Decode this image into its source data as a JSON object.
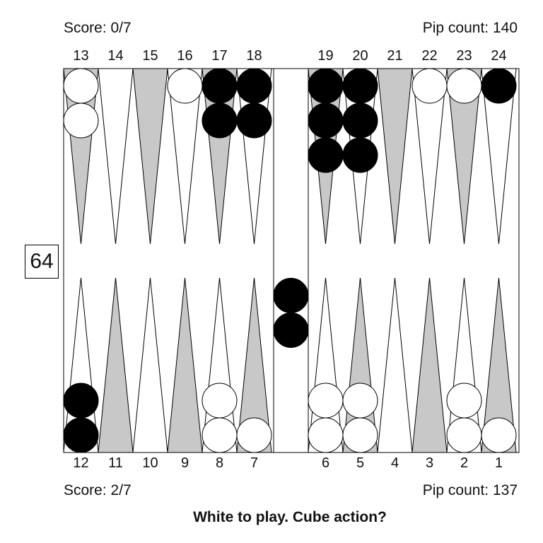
{
  "top": {
    "score": "Score: 0/7",
    "pip_count": "Pip count: 140",
    "point_numbers": [
      "13",
      "14",
      "15",
      "16",
      "17",
      "18",
      "19",
      "20",
      "21",
      "22",
      "23",
      "24"
    ]
  },
  "bottom": {
    "score": "Score: 2/7",
    "pip_count": "Pip count: 137",
    "point_numbers": [
      "12",
      "11",
      "10",
      "9",
      "8",
      "7",
      "6",
      "5",
      "4",
      "3",
      "2",
      "1"
    ]
  },
  "cube_value": "64",
  "prompt": "White to play. Cube action?",
  "colors": {
    "white_checker": "#ffffff",
    "black_checker": "#000000",
    "light_point": "#ffffff",
    "dark_point": "#c8c8c8",
    "board_line": "#000000"
  },
  "checkers": [
    {
      "point": 13,
      "color": "white",
      "count": 2
    },
    {
      "point": 16,
      "color": "white",
      "count": 1
    },
    {
      "point": 17,
      "color": "black",
      "count": 2
    },
    {
      "point": 18,
      "color": "black",
      "count": 2
    },
    {
      "point": 19,
      "color": "black",
      "count": 3
    },
    {
      "point": 20,
      "color": "black",
      "count": 3
    },
    {
      "point": 22,
      "color": "white",
      "count": 1
    },
    {
      "point": 23,
      "color": "white",
      "count": 1
    },
    {
      "point": 24,
      "color": "black",
      "count": 1
    },
    {
      "point": 12,
      "color": "black",
      "count": 2
    },
    {
      "point": 8,
      "color": "white",
      "count": 2
    },
    {
      "point": 7,
      "color": "white",
      "count": 1
    },
    {
      "point": 6,
      "color": "white",
      "count": 2
    },
    {
      "point": 5,
      "color": "white",
      "count": 2
    },
    {
      "point": 2,
      "color": "white",
      "count": 2
    },
    {
      "point": 1,
      "color": "white",
      "count": 1
    }
  ],
  "bar": [
    {
      "color": "black",
      "count": 2
    }
  ]
}
